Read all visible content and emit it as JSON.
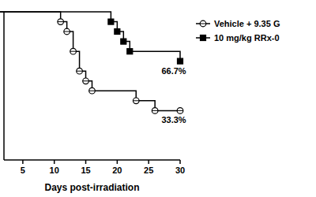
{
  "chart_data": {
    "type": "step",
    "x_label": "Days post-irradiation",
    "xlim": [
      2,
      30
    ],
    "xticks": [
      5,
      10,
      15,
      20,
      25,
      30
    ],
    "ylim": [
      0,
      100
    ],
    "tick_labels": "x",
    "legend": "right",
    "series": [
      {
        "name": "Vehicle + 9.35 G",
        "color": "#000000",
        "marker": "circle-open",
        "x": [
          0,
          11,
          12,
          13,
          14,
          15,
          16,
          23,
          26,
          30
        ],
        "values": [
          100,
          93.3,
          86.7,
          73.3,
          60,
          53.3,
          46.7,
          40,
          33.3,
          33.3
        ]
      },
      {
        "name": "10 mg/kg RRx-0",
        "color": "#000000",
        "marker": "square-filled",
        "x": [
          0,
          19,
          20,
          21,
          22,
          30
        ],
        "values": [
          100,
          93.3,
          86.7,
          80,
          73.3,
          66.7
        ]
      }
    ],
    "annotations": [
      {
        "text": "66.7%",
        "x": 30,
        "y": 66.7
      },
      {
        "text": "33.3%",
        "x": 30,
        "y": 33.3
      }
    ]
  }
}
